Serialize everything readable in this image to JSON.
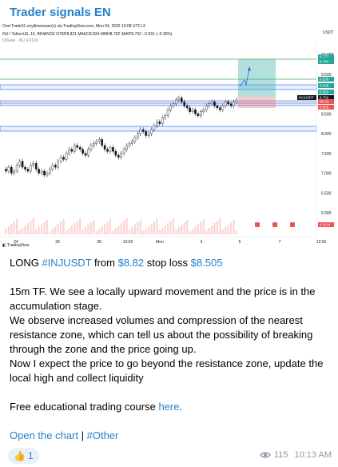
{
  "channel": {
    "title": "Trader signals EN"
  },
  "chart": {
    "header_line1": "OverTrade01 onyltinewsaer(s) via TradingView.com, Mon 04, 2025 19:08 UTC+3",
    "header_line2": "INJ / TetherUS, 15, BINANCE  O7KP8.821  MAKC8.834  MMH8.792  3AKP8.792  −0.031 (−0.35%)",
    "header_line3": "Объём · INJ  4.611K",
    "currency": "USDT",
    "footer": "TradingView",
    "price_ticks": [
      "10.000",
      "9.500",
      "8.500",
      "8.000",
      "7.500",
      "7.000",
      "6.500",
      "6.000"
    ],
    "price_badges": [
      "9.777",
      "9.760",
      "9.258",
      "8.938",
      "8.820",
      "8.792",
      "08.43",
      "8.505",
      "4.611K"
    ],
    "symbol_tag": "INJUSDT",
    "time_ticks": [
      "24",
      "26",
      "28",
      "12:00",
      "Mon",
      "3",
      "5",
      "7",
      "12:00"
    ],
    "calendar_icons": [
      "calendar-icon",
      "calendar-icon",
      "calendar-icon"
    ],
    "colors": {
      "target": "#26a69a",
      "stop": "#ef5350",
      "zone": "#2962ff",
      "resistance": "#4caf50"
    }
  },
  "message": {
    "line1_prefix": "LONG ",
    "hashtag_symbol": "#INJUSDT",
    "line1_mid": " from ",
    "entry_price": "$8.82",
    "line1_mid2": " stop loss ",
    "stop_price": "$8.505",
    "para1": "15m TF. We see a locally upward movement and the price is in the accumulation stage.",
    "para2": "We observe increased volumes and compression of the nearest resistance zone, which can tell us about the possibility of breaking through the zone and the price going up.",
    "para3": "Now I expect the price to go beyond the resistance zone, update the local high and collect liquidity",
    "course_prefix": "Free educational trading course ",
    "course_link": "here",
    "course_suffix": ".",
    "open_chart_link": "Open the chart",
    "separator": " | ",
    "hashtag_other": "#Other"
  },
  "footer": {
    "reaction_emoji": "👍",
    "reaction_count": "1",
    "views": "115",
    "time": "10:13 AM"
  }
}
